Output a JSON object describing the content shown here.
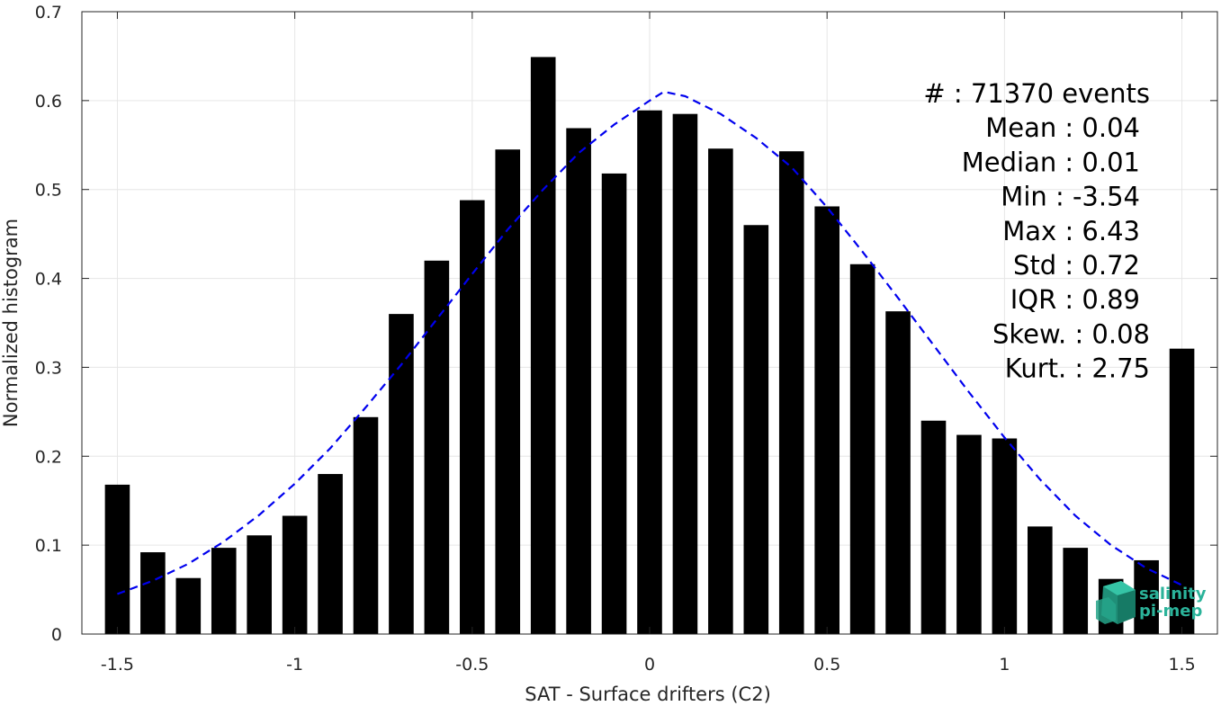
{
  "chart_data": {
    "type": "bar",
    "xlabel": "SAT - Surface drifters (C2)",
    "ylabel": "Normalized histogram",
    "xlim": [
      -1.6,
      1.6
    ],
    "ylim": [
      0,
      0.7
    ],
    "xticks": [
      -1.5,
      -1,
      -0.5,
      0,
      0.5,
      1,
      1.5
    ],
    "xtick_labels": [
      "-1.5",
      "-1",
      "-0.5",
      "0",
      "0.5",
      "1",
      "1.5"
    ],
    "yticks": [
      0,
      0.1,
      0.2,
      0.3,
      0.4,
      0.5,
      0.6,
      0.7
    ],
    "ytick_labels": [
      "0",
      "0.1",
      "0.2",
      "0.3",
      "0.4",
      "0.5",
      "0.6",
      "0.7"
    ],
    "grid": true,
    "bar_color": "#000000",
    "x": [
      -1.5,
      -1.4,
      -1.3,
      -1.2,
      -1.1,
      -1.0,
      -0.9,
      -0.8,
      -0.7,
      -0.6,
      -0.5,
      -0.4,
      -0.3,
      -0.2,
      -0.1,
      0.0,
      0.1,
      0.2,
      0.3,
      0.4,
      0.5,
      0.6,
      0.7,
      0.8,
      0.9,
      1.0,
      1.1,
      1.2,
      1.3,
      1.4,
      1.5
    ],
    "values": [
      0.168,
      0.092,
      0.063,
      0.097,
      0.111,
      0.133,
      0.18,
      0.244,
      0.36,
      0.42,
      0.488,
      0.545,
      0.649,
      0.569,
      0.518,
      0.589,
      0.585,
      0.546,
      0.46,
      0.543,
      0.481,
      0.416,
      0.363,
      0.24,
      0.224,
      0.22,
      0.121,
      0.097,
      0.062,
      0.083,
      0.321
    ],
    "fit_curve": {
      "style": "dashed",
      "color": "#0000ee",
      "x": [
        -1.5,
        -1.4,
        -1.3,
        -1.2,
        -1.1,
        -1.0,
        -0.9,
        -0.8,
        -0.7,
        -0.6,
        -0.5,
        -0.4,
        -0.3,
        -0.2,
        -0.1,
        0.0,
        0.04,
        0.1,
        0.2,
        0.3,
        0.4,
        0.5,
        0.6,
        0.7,
        0.8,
        0.9,
        1.0,
        1.1,
        1.2,
        1.3,
        1.4,
        1.5
      ],
      "y": [
        0.045,
        0.06,
        0.079,
        0.104,
        0.134,
        0.169,
        0.209,
        0.255,
        0.303,
        0.354,
        0.405,
        0.455,
        0.5,
        0.541,
        0.573,
        0.6,
        0.61,
        0.605,
        0.585,
        0.558,
        0.525,
        0.48,
        0.43,
        0.378,
        0.325,
        0.272,
        0.221,
        0.174,
        0.133,
        0.1,
        0.074,
        0.055
      ]
    },
    "annotations": [
      {
        "text": "#  : 71370 events",
        "align": "end-wide"
      },
      {
        "text": "Mean : 0.04",
        "align": "end"
      },
      {
        "text": "Median : 0.01",
        "align": "end"
      },
      {
        "text": "Min : -3.54",
        "align": "end"
      },
      {
        "text": "Max : 6.43",
        "align": "end"
      },
      {
        "text": "Std : 0.72",
        "align": "end"
      },
      {
        "text": "IQR : 0.89",
        "align": "end"
      },
      {
        "text": "Skew. : 0.08",
        "align": "end-wide"
      },
      {
        "text": "Kurt. : 2.75",
        "align": "end-wide"
      }
    ]
  },
  "logo": {
    "line1": "salinity",
    "line2": "pi-mep",
    "color": "#2bb39a"
  }
}
